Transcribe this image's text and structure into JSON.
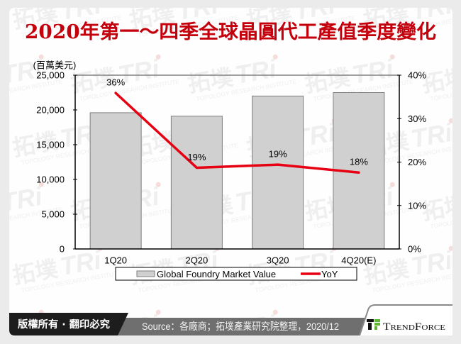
{
  "header": {
    "title": "2020年第一～四季全球晶圓代工產值季度變化"
  },
  "chart_data": {
    "type": "bar",
    "title": "2020年第一～四季全球晶圓代工產值季度變化",
    "categories": [
      "1Q20",
      "2Q20",
      "3Q20",
      "4Q20(E)"
    ],
    "series": [
      {
        "name": "Global Foundry Market Value",
        "type": "bar",
        "axis": "left",
        "values": [
          19600,
          19100,
          22000,
          22500
        ]
      },
      {
        "name": "YoY",
        "type": "line",
        "axis": "right",
        "values": [
          35.9,
          18.7,
          19.4,
          17.6
        ],
        "labels": [
          "36%",
          "19%",
          "19%",
          "18%"
        ]
      }
    ],
    "xlabel": "",
    "ylabel": "(百萬美元)",
    "y2label": "",
    "ylim": [
      0,
      25000
    ],
    "y2lim": [
      0,
      40
    ],
    "yticks": [
      "0",
      "5,000",
      "10,000",
      "15,000",
      "20,000",
      "25,000"
    ],
    "y2ticks": [
      "0%",
      "10%",
      "20%",
      "30%",
      "40%"
    ],
    "grid": false,
    "legend_position": "bottom"
  },
  "footer": {
    "copyright": "版權所有 · 翻印必究",
    "source": "Source：各廠商；拓墣產業研究院整理，2020/12",
    "brand": "TrendForce"
  },
  "watermark": {
    "mark": "拓墣",
    "letters": "TRi",
    "tagline": "TOPOLOGY RESEARCH INSTITUTE"
  },
  "colors": {
    "title": "#c4000c",
    "bar_fill": "#d0d0d0",
    "bar_stroke": "#7f7f7f",
    "line": "#e60012",
    "footer_dark": "#1d1d1d",
    "footer_gray": "#6f6f6f",
    "brand_green": "#5db531",
    "watermark": "#efefef",
    "watermark_dot": "#f7dcdc"
  }
}
